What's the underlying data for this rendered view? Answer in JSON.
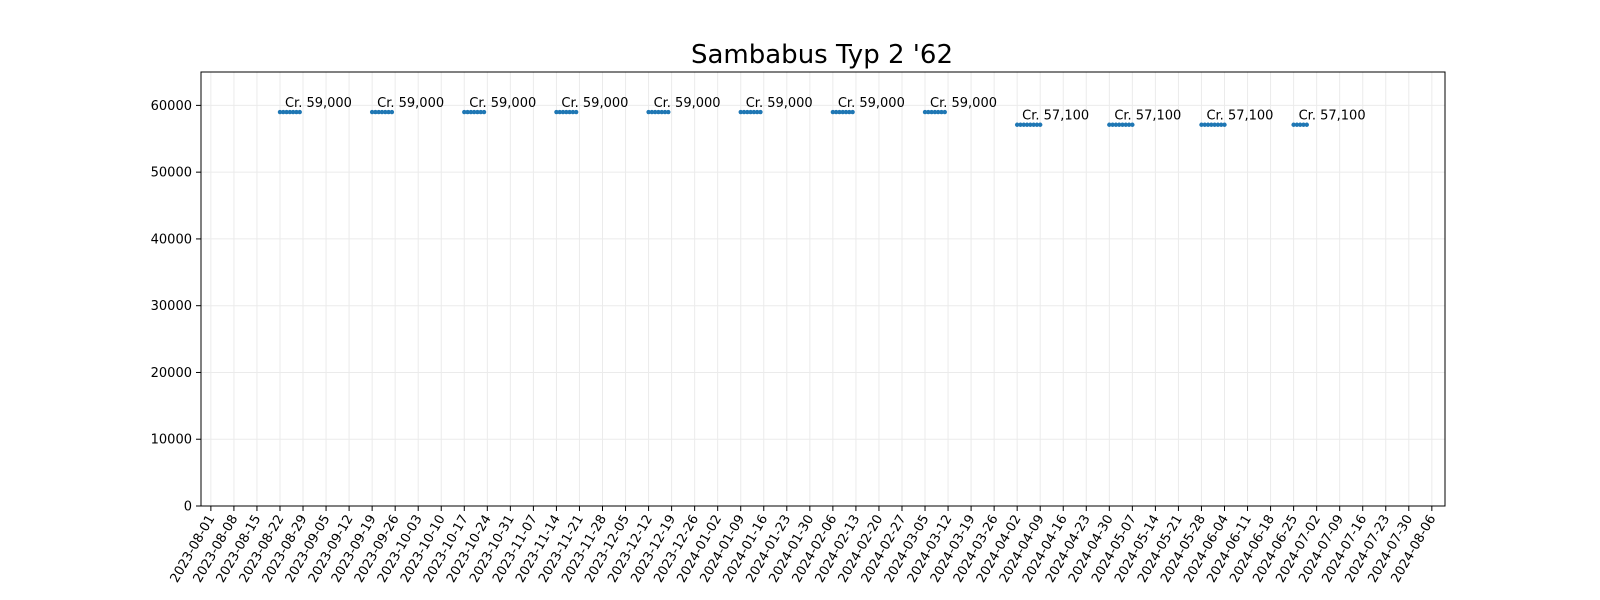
{
  "chart_data": {
    "type": "scatter",
    "title": "Sambabus Typ 2 '62",
    "xlabel": "",
    "ylabel": "",
    "ylim": [
      0,
      65000
    ],
    "xlim": [
      "2023-07-29",
      "2024-08-10"
    ],
    "yticks": [
      0,
      10000,
      20000,
      30000,
      40000,
      50000,
      60000
    ],
    "xticks": [
      "2023-08-01",
      "2023-08-08",
      "2023-08-15",
      "2023-08-22",
      "2023-08-29",
      "2023-09-05",
      "2023-09-12",
      "2023-09-19",
      "2023-09-26",
      "2023-10-03",
      "2023-10-10",
      "2023-10-17",
      "2023-10-24",
      "2023-10-31",
      "2023-11-07",
      "2023-11-14",
      "2023-11-21",
      "2023-11-28",
      "2023-12-05",
      "2023-12-12",
      "2023-12-19",
      "2023-12-26",
      "2024-01-02",
      "2024-01-09",
      "2024-01-16",
      "2024-01-23",
      "2024-01-30",
      "2024-02-06",
      "2024-02-13",
      "2024-02-20",
      "2024-02-27",
      "2024-03-05",
      "2024-03-12",
      "2024-03-19",
      "2024-03-26",
      "2024-04-02",
      "2024-04-09",
      "2024-04-16",
      "2024-04-23",
      "2024-04-30",
      "2024-05-07",
      "2024-05-14",
      "2024-05-21",
      "2024-05-28",
      "2024-06-04",
      "2024-06-11",
      "2024-06-18",
      "2024-06-25",
      "2024-07-02",
      "2024-07-09",
      "2024-07-16",
      "2024-07-23",
      "2024-07-30",
      "2024-08-06"
    ],
    "grid": true,
    "series": [
      {
        "color": "#1f77b4",
        "points": [
          {
            "x": "2023-08-22",
            "y": 59000
          },
          {
            "x": "2023-08-23",
            "y": 59000
          },
          {
            "x": "2023-08-24",
            "y": 59000
          },
          {
            "x": "2023-08-25",
            "y": 59000
          },
          {
            "x": "2023-08-26",
            "y": 59000
          },
          {
            "x": "2023-08-27",
            "y": 59000
          },
          {
            "x": "2023-08-28",
            "y": 59000
          },
          {
            "x": "2023-09-19",
            "y": 59000
          },
          {
            "x": "2023-09-20",
            "y": 59000
          },
          {
            "x": "2023-09-21",
            "y": 59000
          },
          {
            "x": "2023-09-22",
            "y": 59000
          },
          {
            "x": "2023-09-23",
            "y": 59000
          },
          {
            "x": "2023-09-24",
            "y": 59000
          },
          {
            "x": "2023-09-25",
            "y": 59000
          },
          {
            "x": "2023-10-17",
            "y": 59000
          },
          {
            "x": "2023-10-18",
            "y": 59000
          },
          {
            "x": "2023-10-19",
            "y": 59000
          },
          {
            "x": "2023-10-20",
            "y": 59000
          },
          {
            "x": "2023-10-21",
            "y": 59000
          },
          {
            "x": "2023-10-22",
            "y": 59000
          },
          {
            "x": "2023-10-23",
            "y": 59000
          },
          {
            "x": "2023-11-14",
            "y": 59000
          },
          {
            "x": "2023-11-15",
            "y": 59000
          },
          {
            "x": "2023-11-16",
            "y": 59000
          },
          {
            "x": "2023-11-17",
            "y": 59000
          },
          {
            "x": "2023-11-18",
            "y": 59000
          },
          {
            "x": "2023-11-19",
            "y": 59000
          },
          {
            "x": "2023-11-20",
            "y": 59000
          },
          {
            "x": "2023-12-12",
            "y": 59000
          },
          {
            "x": "2023-12-13",
            "y": 59000
          },
          {
            "x": "2023-12-14",
            "y": 59000
          },
          {
            "x": "2023-12-15",
            "y": 59000
          },
          {
            "x": "2023-12-16",
            "y": 59000
          },
          {
            "x": "2023-12-17",
            "y": 59000
          },
          {
            "x": "2023-12-18",
            "y": 59000
          },
          {
            "x": "2024-01-09",
            "y": 59000
          },
          {
            "x": "2024-01-10",
            "y": 59000
          },
          {
            "x": "2024-01-11",
            "y": 59000
          },
          {
            "x": "2024-01-12",
            "y": 59000
          },
          {
            "x": "2024-01-13",
            "y": 59000
          },
          {
            "x": "2024-01-14",
            "y": 59000
          },
          {
            "x": "2024-01-15",
            "y": 59000
          },
          {
            "x": "2024-02-06",
            "y": 59000
          },
          {
            "x": "2024-02-07",
            "y": 59000
          },
          {
            "x": "2024-02-08",
            "y": 59000
          },
          {
            "x": "2024-02-09",
            "y": 59000
          },
          {
            "x": "2024-02-10",
            "y": 59000
          },
          {
            "x": "2024-02-11",
            "y": 59000
          },
          {
            "x": "2024-02-12",
            "y": 59000
          },
          {
            "x": "2024-03-05",
            "y": 59000
          },
          {
            "x": "2024-03-06",
            "y": 59000
          },
          {
            "x": "2024-03-07",
            "y": 59000
          },
          {
            "x": "2024-03-08",
            "y": 59000
          },
          {
            "x": "2024-03-09",
            "y": 59000
          },
          {
            "x": "2024-03-10",
            "y": 59000
          },
          {
            "x": "2024-03-11",
            "y": 59000
          },
          {
            "x": "2024-04-02",
            "y": 57100
          },
          {
            "x": "2024-04-03",
            "y": 57100
          },
          {
            "x": "2024-04-04",
            "y": 57100
          },
          {
            "x": "2024-04-05",
            "y": 57100
          },
          {
            "x": "2024-04-06",
            "y": 57100
          },
          {
            "x": "2024-04-07",
            "y": 57100
          },
          {
            "x": "2024-04-08",
            "y": 57100
          },
          {
            "x": "2024-04-09",
            "y": 57100
          },
          {
            "x": "2024-04-30",
            "y": 57100
          },
          {
            "x": "2024-05-01",
            "y": 57100
          },
          {
            "x": "2024-05-02",
            "y": 57100
          },
          {
            "x": "2024-05-03",
            "y": 57100
          },
          {
            "x": "2024-05-04",
            "y": 57100
          },
          {
            "x": "2024-05-05",
            "y": 57100
          },
          {
            "x": "2024-05-06",
            "y": 57100
          },
          {
            "x": "2024-05-07",
            "y": 57100
          },
          {
            "x": "2024-05-28",
            "y": 57100
          },
          {
            "x": "2024-05-29",
            "y": 57100
          },
          {
            "x": "2024-05-30",
            "y": 57100
          },
          {
            "x": "2024-05-31",
            "y": 57100
          },
          {
            "x": "2024-06-01",
            "y": 57100
          },
          {
            "x": "2024-06-02",
            "y": 57100
          },
          {
            "x": "2024-06-03",
            "y": 57100
          },
          {
            "x": "2024-06-04",
            "y": 57100
          },
          {
            "x": "2024-06-25",
            "y": 57100
          },
          {
            "x": "2024-06-26",
            "y": 57100
          },
          {
            "x": "2024-06-27",
            "y": 57100
          },
          {
            "x": "2024-06-28",
            "y": 57100
          },
          {
            "x": "2024-06-29",
            "y": 57100
          }
        ]
      }
    ],
    "annotations": [
      {
        "x": "2023-08-22",
        "y": 59000,
        "text": "Cr. 59,000"
      },
      {
        "x": "2023-09-19",
        "y": 59000,
        "text": "Cr. 59,000"
      },
      {
        "x": "2023-10-17",
        "y": 59000,
        "text": "Cr. 59,000"
      },
      {
        "x": "2023-11-14",
        "y": 59000,
        "text": "Cr. 59,000"
      },
      {
        "x": "2023-12-12",
        "y": 59000,
        "text": "Cr. 59,000"
      },
      {
        "x": "2024-01-09",
        "y": 59000,
        "text": "Cr. 59,000"
      },
      {
        "x": "2024-02-06",
        "y": 59000,
        "text": "Cr. 59,000"
      },
      {
        "x": "2024-03-05",
        "y": 59000,
        "text": "Cr. 59,000"
      },
      {
        "x": "2024-04-02",
        "y": 57100,
        "text": "Cr. 57,100"
      },
      {
        "x": "2024-04-30",
        "y": 57100,
        "text": "Cr. 57,100"
      },
      {
        "x": "2024-05-28",
        "y": 57100,
        "text": "Cr. 57,100"
      },
      {
        "x": "2024-06-25",
        "y": 57100,
        "text": "Cr. 57,100"
      }
    ]
  }
}
